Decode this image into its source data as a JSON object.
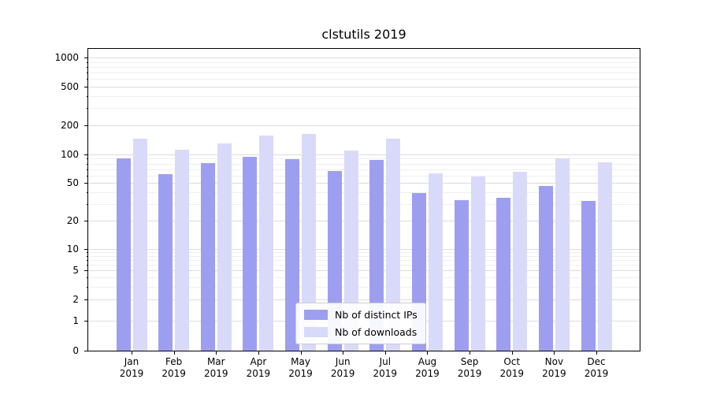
{
  "chart_data": {
    "type": "bar",
    "title": "clstutils 2019",
    "categories": [
      "Jan",
      "Feb",
      "Mar",
      "Apr",
      "May",
      "Jun",
      "Jul",
      "Aug",
      "Sep",
      "Oct",
      "Nov",
      "Dec"
    ],
    "x_year": "2019",
    "yscale": "symlog",
    "yticks": [
      0,
      1,
      2,
      5,
      10,
      20,
      50,
      100,
      200,
      500,
      1000
    ],
    "ylim": [
      0,
      1300
    ],
    "grid": true,
    "legend_position": "lower center",
    "series": [
      {
        "name": "Nb of distinct IPs",
        "color": "#9e9ef0",
        "values": [
          90,
          62,
          81,
          94,
          89,
          67,
          88,
          39,
          33,
          35,
          46,
          32
        ]
      },
      {
        "name": "Nb of downloads",
        "color": "#d9d9f9",
        "values": [
          145,
          112,
          130,
          158,
          163,
          110,
          145,
          63,
          58,
          66,
          91,
          82
        ]
      }
    ]
  }
}
